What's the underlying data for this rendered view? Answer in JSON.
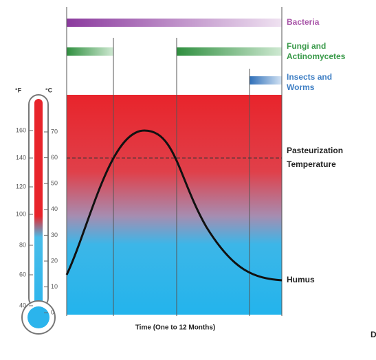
{
  "organisms": [
    {
      "label": [
        "Bacteria"
      ]
    },
    {
      "label": [
        "Fungi and",
        "Actinomycetes"
      ]
    },
    {
      "label": [
        "Insects and",
        "Worms"
      ]
    }
  ],
  "thermometer": {
    "fahrenheit_unit": "°F",
    "celsius_unit": "°C",
    "fahrenheit_ticks": [
      "160",
      "140",
      "120",
      "100",
      "80",
      "60",
      "40"
    ],
    "celsius_ticks": [
      "70",
      "60",
      "50",
      "40",
      "30",
      "20",
      "10",
      "0"
    ]
  },
  "annotations": {
    "pasteurization": [
      "Pasteurization",
      "Temperature"
    ],
    "end": "Humus"
  },
  "x_axis_label": "Time (One to 12 Months)",
  "fragment": "D"
}
